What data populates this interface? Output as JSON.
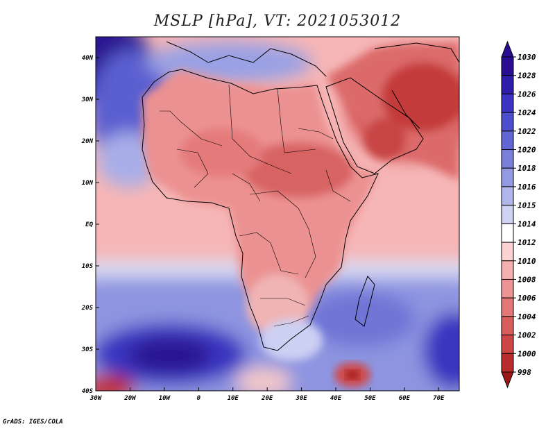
{
  "title": "MSLP [hPa], VT: 2021053012",
  "credit": "GrADS: IGES/COLA",
  "map": {
    "lon_labels": [
      "30W",
      "20W",
      "10W",
      "0",
      "10E",
      "20E",
      "30E",
      "40E",
      "50E",
      "60E",
      "70E"
    ],
    "lat_labels": [
      "40N",
      "30N",
      "20N",
      "10N",
      "EQ",
      "10S",
      "20S",
      "30S",
      "40S"
    ]
  },
  "colorbar": {
    "levels": [
      "1030",
      "1028",
      "1026",
      "1024",
      "1022",
      "1020",
      "1018",
      "1016",
      "1015",
      "1014",
      "1012",
      "1010",
      "1008",
      "1006",
      "1004",
      "1002",
      "1000",
      "998"
    ],
    "colors": [
      "#2a0d91",
      "#2e1da8",
      "#3a34c0",
      "#4d4fcc",
      "#6266d3",
      "#7a80da",
      "#949ae2",
      "#b0b5ea",
      "#d0d3f3",
      "#ffffff",
      "#fcd2d2",
      "#f6b0b0",
      "#ec9393",
      "#e47878",
      "#d85e5e",
      "#cc4646",
      "#b82c2c",
      "#9c1818"
    ]
  },
  "chart_data": {
    "type": "heatmap",
    "title": "MSLP [hPa], VT: 2021053012",
    "x_ticks": [
      "30W",
      "20W",
      "10W",
      "0",
      "10E",
      "20E",
      "30E",
      "40E",
      "50E",
      "60E",
      "70E"
    ],
    "y_ticks": [
      "40N",
      "30N",
      "20N",
      "10N",
      "EQ",
      "10S",
      "20S",
      "30S",
      "40S"
    ],
    "x_range": [
      -30,
      76
    ],
    "y_range": [
      -40,
      45
    ],
    "color_levels": [
      998,
      1000,
      1002,
      1004,
      1006,
      1008,
      1010,
      1012,
      1014,
      1015,
      1016,
      1018,
      1020,
      1022,
      1024,
      1026,
      1028,
      1030
    ]
  }
}
